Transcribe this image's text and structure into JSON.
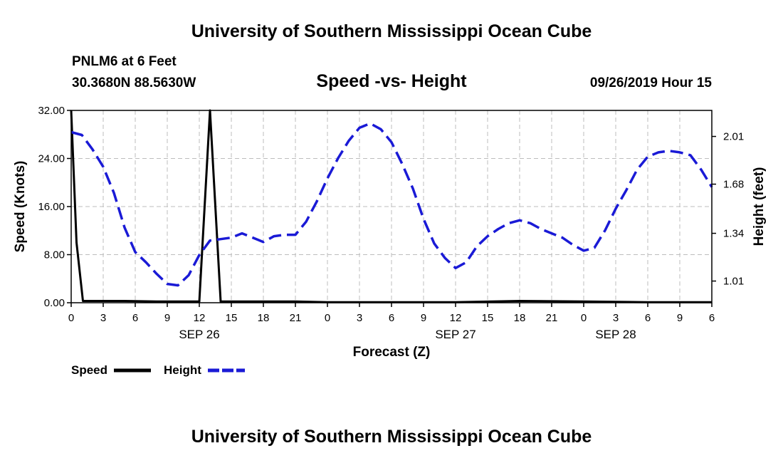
{
  "header": {
    "title": "University of Southern Mississippi Ocean Cube",
    "station": "PNLM6 at 6 Feet",
    "coords": "30.3680N 88.5630W",
    "subtitle": "Speed -vs- Height",
    "timestamp": "09/26/2019 Hour 15"
  },
  "footer": {
    "title": "University of Southern Mississippi Ocean Cube"
  },
  "legend": {
    "speed_label": "Speed",
    "height_label": "Height"
  },
  "colors": {
    "speed": "#000000",
    "height": "#1a1ad6",
    "grid": "#bdbdbd"
  },
  "chart_data": {
    "type": "line",
    "title": "Speed -vs- Height",
    "xlabel": "Forecast (Z)",
    "ylabel": "Speed (Knots)",
    "y2label": "Height (feet)",
    "xlim": [
      0,
      60
    ],
    "ylim": [
      0,
      32
    ],
    "y2lim": [
      0.86,
      2.19
    ],
    "x_ticks": [
      0,
      3,
      6,
      9,
      12,
      15,
      18,
      21,
      24,
      27,
      30,
      33,
      36,
      39,
      42,
      45,
      48,
      51,
      54,
      57,
      60
    ],
    "x_tick_labels": [
      "0",
      "3",
      "6",
      "9",
      "12",
      "15",
      "18",
      "21",
      "0",
      "3",
      "6",
      "9",
      "12",
      "15",
      "18",
      "21",
      "0",
      "3",
      "6",
      "9",
      "6"
    ],
    "y_ticks": [
      "0.00",
      "8.00",
      "16.00",
      "24.00",
      "32.00"
    ],
    "y2_ticks": [
      "1.01",
      "1.34",
      "1.68",
      "2.01"
    ],
    "day_labels": [
      {
        "label": "SEP 26",
        "x": 12
      },
      {
        "label": "SEP 27",
        "x": 36
      },
      {
        "label": "SEP 28",
        "x": 51
      }
    ],
    "series": [
      {
        "name": "Speed",
        "axis": "left",
        "x": [
          0,
          0.5,
          1.1,
          2,
          5,
          8,
          11,
          12,
          13,
          14,
          15,
          18,
          21,
          24,
          30,
          36,
          42,
          48,
          54,
          60
        ],
        "y": [
          32,
          10,
          0.3,
          0.3,
          0.3,
          0.2,
          0.2,
          0.2,
          32,
          0.2,
          0.2,
          0.2,
          0.2,
          0.1,
          0.1,
          0.1,
          0.3,
          0.2,
          0.1,
          0.1
        ]
      },
      {
        "name": "Height",
        "axis": "right",
        "x": [
          0,
          1,
          2,
          3,
          4,
          5,
          6,
          7,
          8,
          9,
          10,
          11,
          12,
          13,
          14,
          15,
          16,
          17,
          18,
          19,
          20,
          21,
          22,
          23,
          24,
          25,
          26,
          27,
          28,
          29,
          30,
          31,
          32,
          33,
          34,
          35,
          36,
          37,
          38,
          39,
          40,
          41,
          42,
          43,
          44,
          45,
          46,
          47,
          48,
          49,
          50,
          51,
          52,
          53,
          54,
          55,
          56,
          57,
          58,
          59,
          60
        ],
        "y": [
          2.04,
          2.02,
          1.92,
          1.8,
          1.62,
          1.38,
          1.21,
          1.14,
          1.06,
          0.99,
          0.98,
          1.05,
          1.19,
          1.29,
          1.3,
          1.31,
          1.34,
          1.31,
          1.28,
          1.32,
          1.33,
          1.33,
          1.42,
          1.56,
          1.72,
          1.86,
          1.98,
          2.07,
          2.1,
          2.06,
          1.97,
          1.82,
          1.65,
          1.44,
          1.27,
          1.17,
          1.1,
          1.14,
          1.25,
          1.32,
          1.37,
          1.41,
          1.43,
          1.41,
          1.37,
          1.34,
          1.31,
          1.26,
          1.22,
          1.24,
          1.36,
          1.51,
          1.64,
          1.78,
          1.87,
          1.9,
          1.91,
          1.9,
          1.88,
          1.78,
          1.66
        ]
      }
    ]
  }
}
